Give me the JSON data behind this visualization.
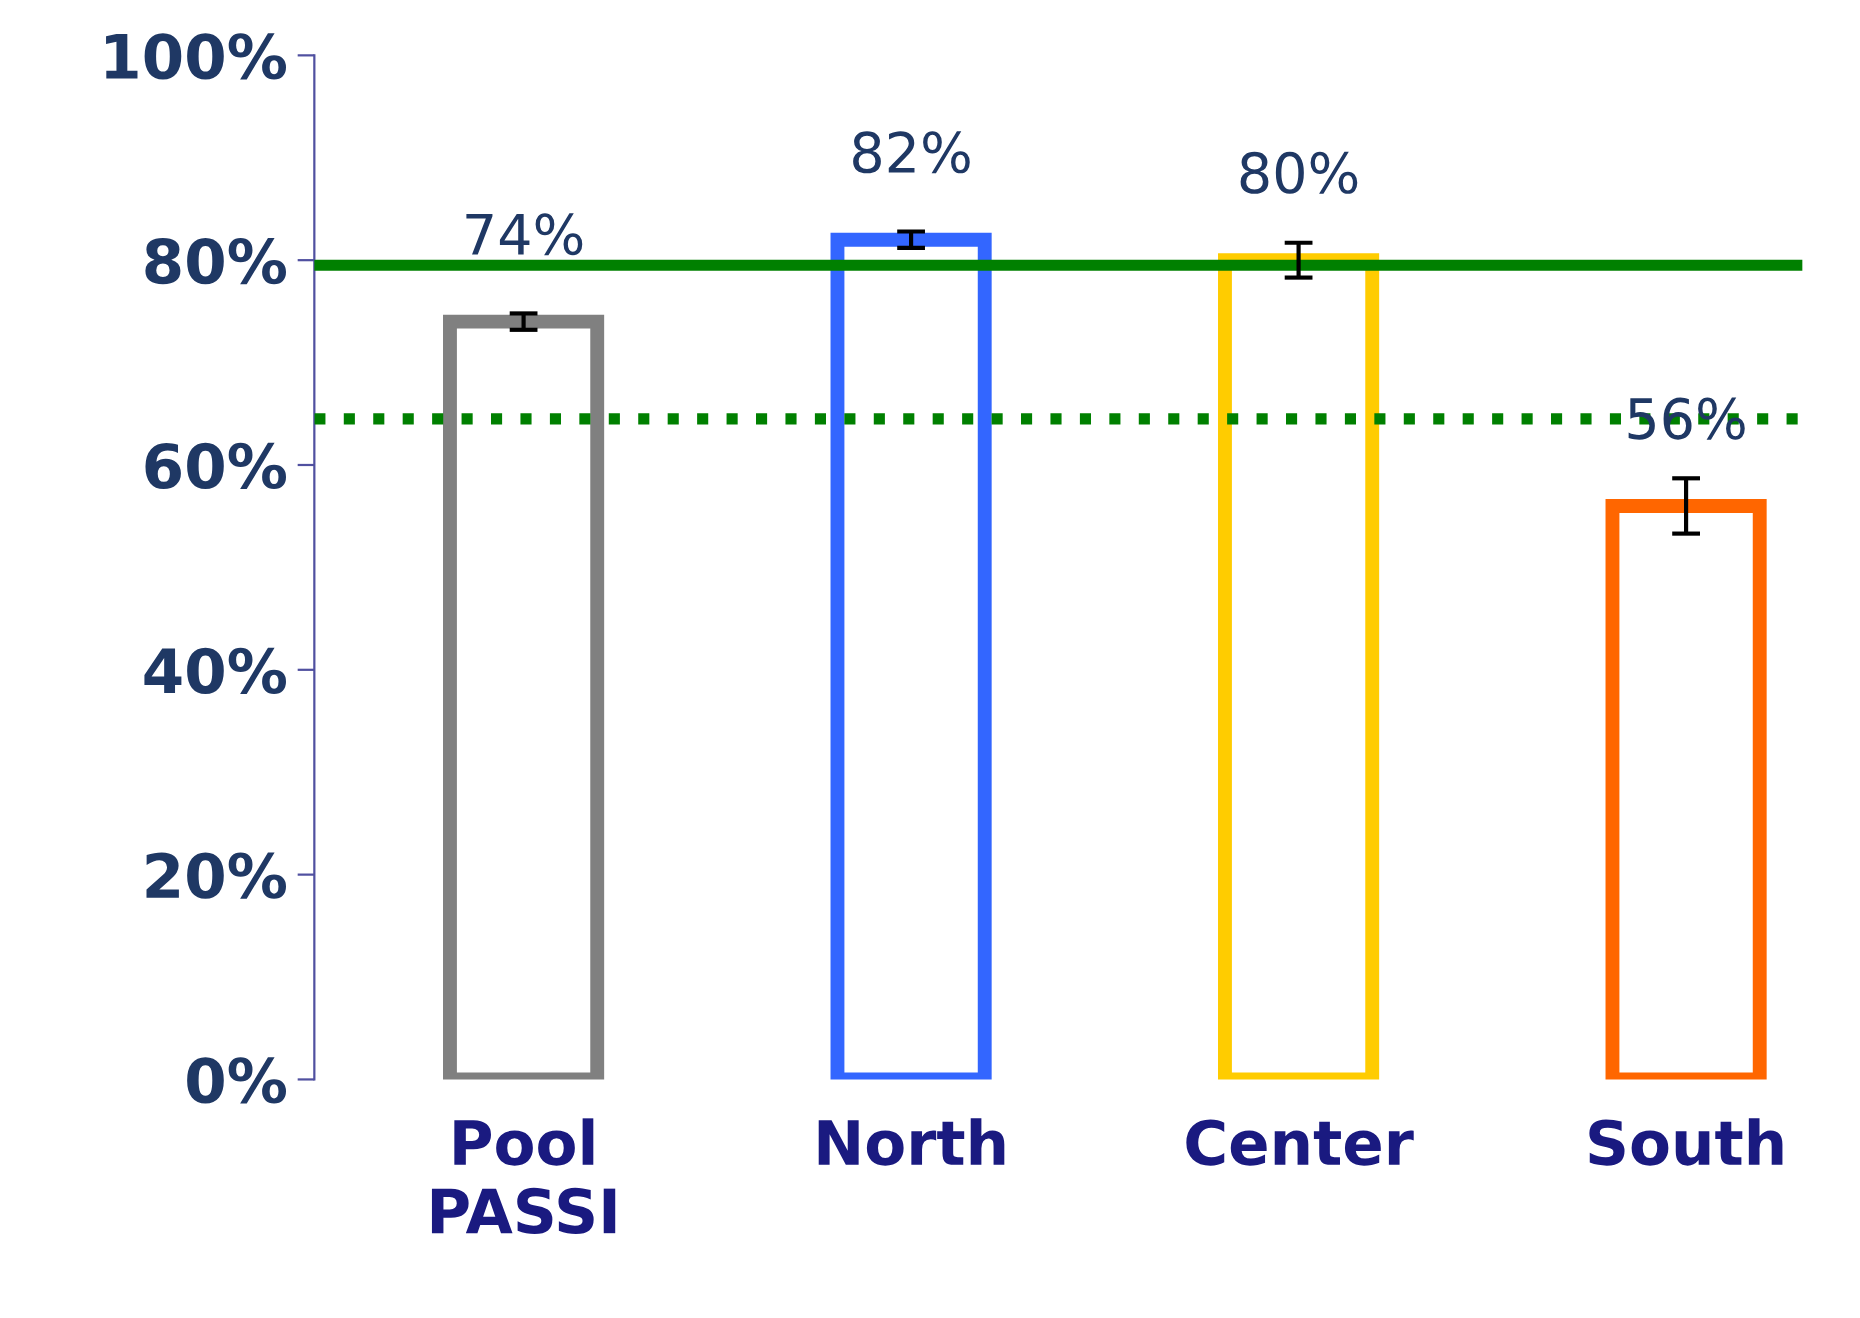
{
  "chart_data": {
    "type": "bar",
    "categories": [
      "Pool\nPASSI",
      "North",
      "Center",
      "South"
    ],
    "values": [
      74,
      82,
      80,
      56
    ],
    "colors": [
      "#808080",
      "#3366ff",
      "#ffcc00",
      "#ff6600"
    ],
    "errors": [
      0.8,
      0.8,
      1.7,
      2.7
    ],
    "value_labels": [
      "74%",
      "82%",
      "80%",
      "56%"
    ],
    "ylim": [
      0,
      100
    ],
    "yticks": [
      {
        "value": 0,
        "label": "0%"
      },
      {
        "value": 20,
        "label": "20%"
      },
      {
        "value": 40,
        "label": "40%"
      },
      {
        "value": 60,
        "label": "60%"
      },
      {
        "value": 80,
        "label": "80%"
      },
      {
        "value": 100,
        "label": "100%"
      }
    ],
    "ref_lines": [
      {
        "axis": "y",
        "value": 79.5,
        "label": null,
        "color": "#008000",
        "line_style": "solid"
      },
      {
        "axis": "y",
        "value": 64.5,
        "label": null,
        "color": "#008000",
        "line_style": "dotted"
      }
    ],
    "grid": false,
    "legend": false
  }
}
